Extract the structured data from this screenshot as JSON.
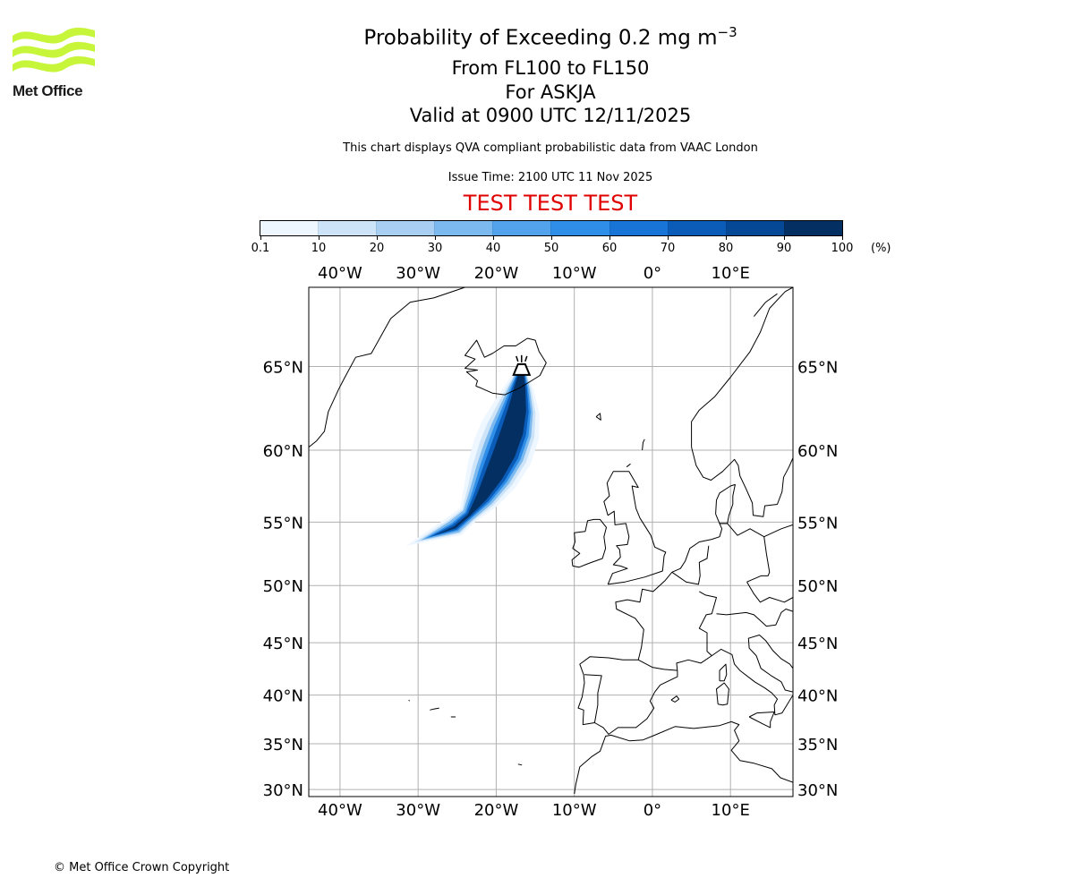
{
  "header": {
    "title_main": "Probability of Exceeding 0.2 mg m",
    "title_exp": "−3",
    "level_range": "From FL100 to FL150",
    "volcano_line": "For ASKJA",
    "valid_line": "Valid at 0900 UTC 12/11/2025",
    "subtitle": "This chart displays QVA compliant probabilistic data from VAAC London",
    "issue_time": "Issue Time: 2100 UTC 11 Nov 2025",
    "test_banner": "TEST TEST TEST"
  },
  "logo": {
    "text": "Met Office",
    "color": "#c7f53a"
  },
  "colorbar": {
    "ticks": [
      "0.1",
      "10",
      "20",
      "30",
      "40",
      "50",
      "60",
      "70",
      "80",
      "90",
      "100"
    ],
    "unit": "(%)",
    "colors": [
      "#eef6ff",
      "#cde4f8",
      "#a8cff2",
      "#7cb9ee",
      "#52a3ec",
      "#2e8ee8",
      "#1874d6",
      "#0a5cb8",
      "#054896",
      "#032f62"
    ]
  },
  "map": {
    "lon_range": [
      -44,
      18
    ],
    "lat_range": [
      29.2,
      69
    ],
    "lon_ticks": [
      "40°W",
      "30°W",
      "20°W",
      "10°W",
      "0°",
      "10°E"
    ],
    "lat_ticks": [
      "65°N",
      "60°N",
      "55°N",
      "50°N",
      "45°N",
      "40°N",
      "35°N",
      "30°N"
    ],
    "volcano": {
      "name": "ASKJA",
      "lon": -16.75,
      "lat": 65.03
    }
  },
  "footer": {
    "copyright": "© Met Office Crown Copyright"
  }
}
